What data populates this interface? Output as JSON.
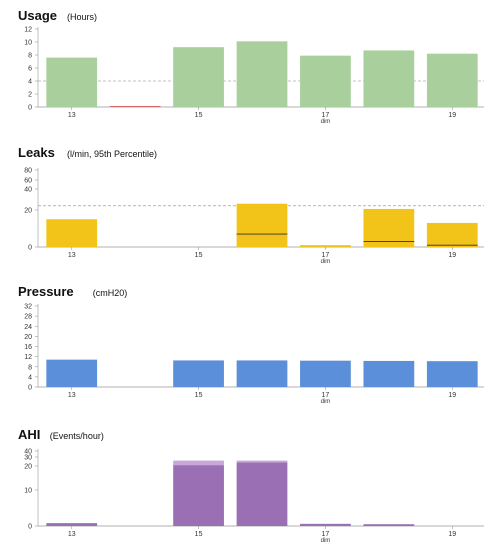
{
  "colors": {
    "usage": "#a9cf9c",
    "leaks": "#f2c318",
    "pressure": "#5b8fd9",
    "ahi": "#9b6fb4",
    "ahi_top": "#c8a8d8",
    "axis": "#999999",
    "threshold": "#888888"
  },
  "chart_data": [
    {
      "type": "bar",
      "title": "Usage",
      "unit": "(Hours)",
      "x": [
        13,
        14,
        15,
        16,
        17,
        18,
        19
      ],
      "x_tick_labels": [
        "13",
        "15",
        "17",
        "19"
      ],
      "x_tick_values": [
        13,
        15,
        17,
        19
      ],
      "x_sub_label": "dim",
      "x_sub_label_at": 17,
      "yticks": [
        0,
        2,
        4,
        6,
        8,
        10,
        12
      ],
      "ylim": [
        0,
        12
      ],
      "values": [
        7.6,
        0.1,
        9.2,
        10.1,
        7.9,
        8.7,
        8.2
      ],
      "threshold": 4,
      "grid": false
    },
    {
      "type": "bar",
      "title": "Leaks",
      "unit": "(l/min, 95th Percentile)",
      "x": [
        13,
        14,
        15,
        16,
        17,
        18,
        19
      ],
      "x_tick_labels": [
        "13",
        "15",
        "17",
        "19"
      ],
      "x_tick_values": [
        13,
        15,
        17,
        19
      ],
      "x_sub_label": "dim",
      "x_sub_label_at": 17,
      "yticks": [
        0,
        20,
        40,
        60,
        80
      ],
      "ytick_labels": [
        "0",
        "20",
        "40",
        "60",
        "80"
      ],
      "values": [
        15,
        0,
        0,
        26,
        1,
        21,
        13
      ],
      "median": [
        null,
        null,
        null,
        7,
        null,
        3,
        1
      ],
      "threshold": 24,
      "grid": false
    },
    {
      "type": "bar",
      "title": "Pressure",
      "unit": "(cmH20)",
      "x": [
        13,
        14,
        15,
        16,
        17,
        18,
        19
      ],
      "x_tick_labels": [
        "13",
        "15",
        "17",
        "19"
      ],
      "x_tick_values": [
        13,
        15,
        17,
        19
      ],
      "x_sub_label": "dim",
      "x_sub_label_at": 17,
      "yticks": [
        0,
        4,
        8,
        12,
        16,
        20,
        24,
        28,
        32
      ],
      "ylim": [
        0,
        32
      ],
      "values": [
        10.8,
        0,
        10.5,
        10.5,
        10.4,
        10.3,
        10.2
      ],
      "grid": false
    },
    {
      "type": "bar",
      "title": "AHI",
      "unit": "(Events/hour)",
      "x": [
        13,
        14,
        15,
        16,
        17,
        18,
        19
      ],
      "x_tick_labels": [
        "13",
        "15",
        "17",
        "19"
      ],
      "x_tick_values": [
        13,
        15,
        17,
        19
      ],
      "x_sub_label": "dim",
      "x_sub_label_at": 17,
      "yticks": [
        0,
        10,
        20,
        30,
        40
      ],
      "values": [
        0.8,
        0,
        21,
        24,
        0.6,
        0.5,
        0
      ],
      "values_top": [
        0,
        0,
        5,
        2,
        0,
        0,
        0
      ],
      "grid": false
    }
  ]
}
